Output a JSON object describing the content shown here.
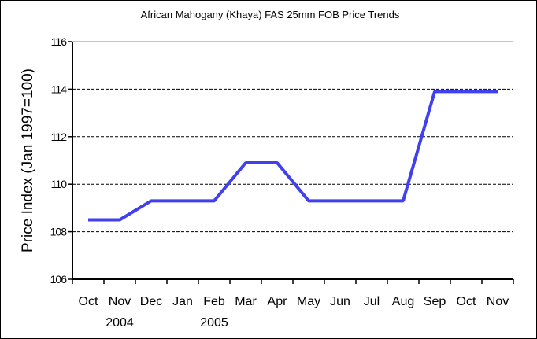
{
  "chart_data": {
    "type": "line",
    "title": "African Mahogany (Khaya) FAS 25mm FOB Price Trends",
    "xlabel": "",
    "ylabel": "Price Index (Jan 1997=100)",
    "categories": [
      "Oct",
      "Nov",
      "Dec",
      "Jan",
      "Feb",
      "Mar",
      "Apr",
      "May",
      "Jun",
      "Jul",
      "Aug",
      "Sep",
      "Oct",
      "Nov"
    ],
    "year_labels": [
      {
        "label": "2004",
        "category_index": 1
      },
      {
        "label": "2005",
        "category_index": 4
      }
    ],
    "series": [
      {
        "name": "Price Index",
        "color": "#4040f0",
        "values": [
          108.5,
          108.5,
          109.3,
          109.3,
          109.3,
          110.9,
          110.9,
          109.3,
          109.3,
          109.3,
          109.3,
          113.9,
          113.9,
          113.9
        ]
      }
    ],
    "ylim": [
      106,
      116
    ],
    "yticks": [
      106,
      108,
      110,
      112,
      114,
      116
    ],
    "grid": "horizontal dashed",
    "legend": "none"
  }
}
